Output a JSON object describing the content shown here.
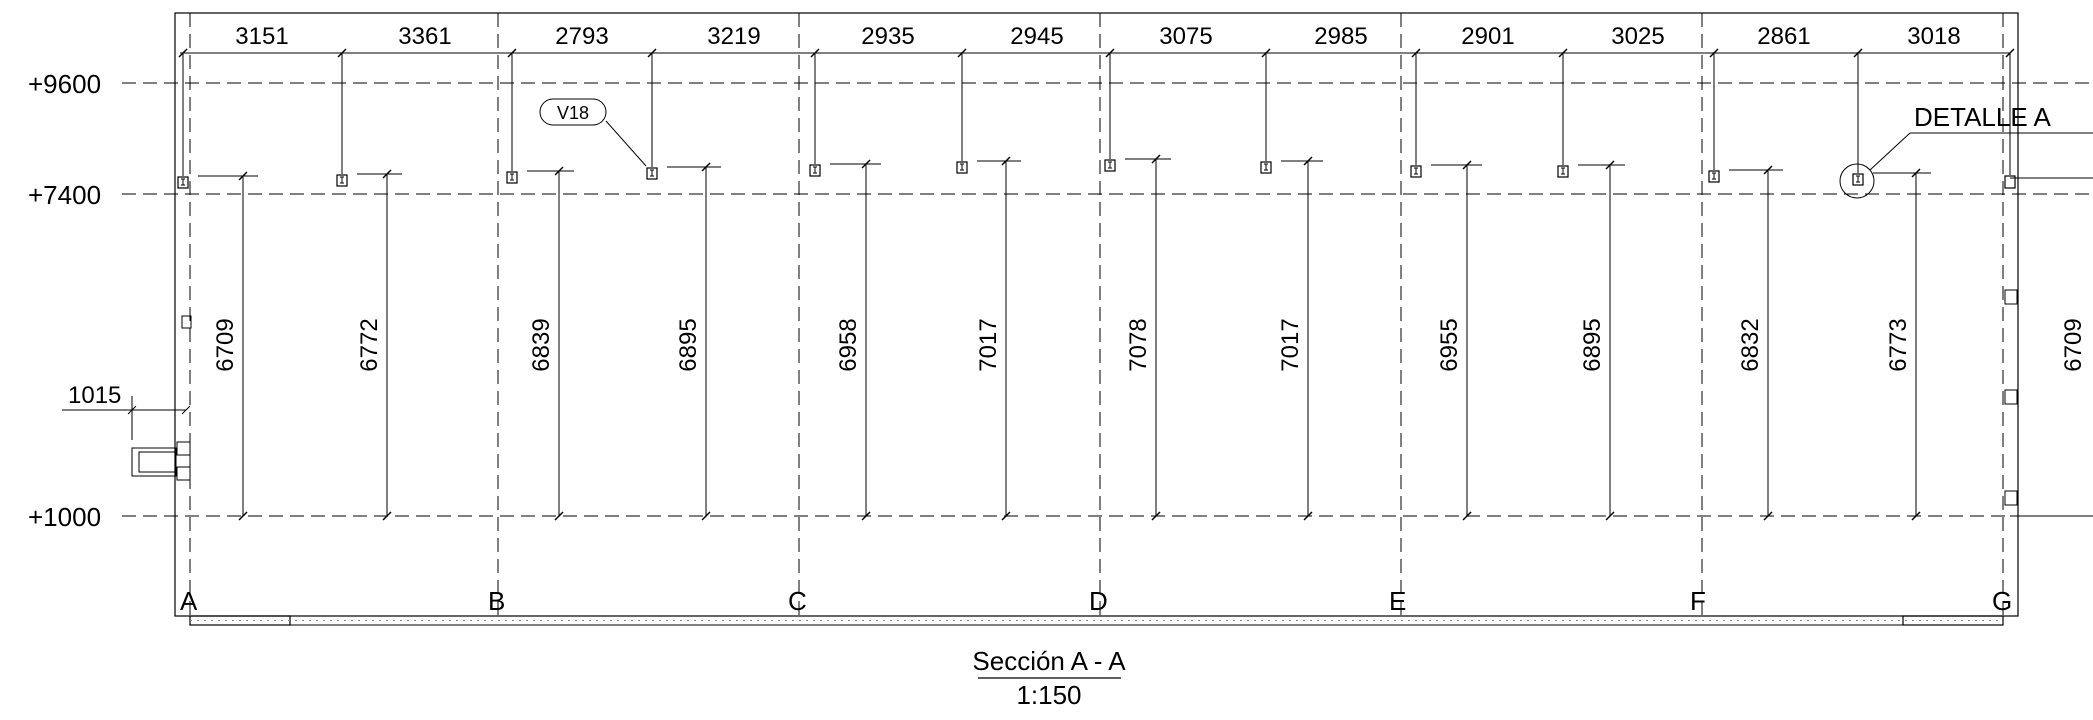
{
  "section": {
    "title": "Sección A - A",
    "scale": "1:150"
  },
  "levels": [
    "+9600",
    "+7400",
    "+1000"
  ],
  "grid_axes": [
    "A",
    "B",
    "C",
    "D",
    "E",
    "F",
    "G"
  ],
  "top_spans": [
    "3151",
    "3361",
    "2793",
    "3219",
    "2935",
    "2945",
    "3075",
    "2985",
    "2901",
    "3025",
    "2861",
    "3018"
  ],
  "column_heights": [
    "6709",
    "6772",
    "6839",
    "6895",
    "6958",
    "7017",
    "7078",
    "7017",
    "6955",
    "6895",
    "6832",
    "6773"
  ],
  "right_height": "6709",
  "left_offset": "1015",
  "beam_tag": "V18",
  "detail_label": "DETALLE A",
  "colors": {
    "line": "#000000",
    "background": "#ffffff",
    "hatch": "#777777"
  }
}
